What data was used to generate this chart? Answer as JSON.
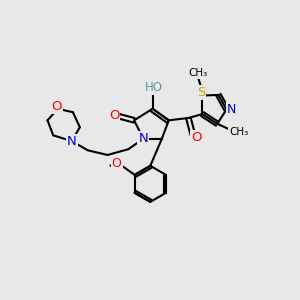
{
  "bg_color": "#e8e8e8",
  "atom_colors": {
    "O": "#ff0000",
    "N": "#0000cc",
    "S": "#ccaa00",
    "C": "#000000",
    "H_label": "#5a9898"
  },
  "bond_color": "#000000",
  "bond_width": 1.5,
  "figsize": [
    3.0,
    3.0
  ],
  "dpi": 100,
  "xlim": [
    0,
    10
  ],
  "ylim": [
    0,
    10
  ]
}
